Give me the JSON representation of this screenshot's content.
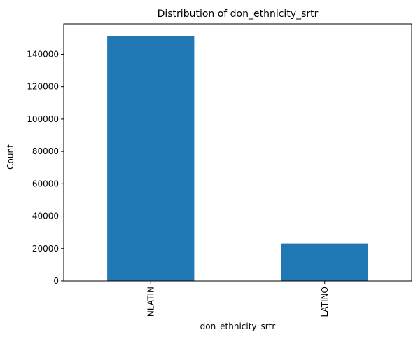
{
  "chart_data": {
    "type": "bar",
    "title": "Distribution of don_ethnicity_srtr",
    "xlabel": "don_ethnicity_srtr",
    "ylabel": "Count",
    "categories": [
      "NLATIN",
      "LATINO"
    ],
    "values": [
      151200,
      23100
    ],
    "ylim": [
      0,
      158800
    ],
    "yticks": [
      0,
      20000,
      40000,
      60000,
      80000,
      100000,
      120000,
      140000
    ],
    "ytick_labels": [
      "0",
      "20000",
      "40000",
      "60000",
      "80000",
      "100000",
      "120000",
      "140000"
    ],
    "bar_color": "#1f77b4",
    "grid": false,
    "legend": false
  }
}
